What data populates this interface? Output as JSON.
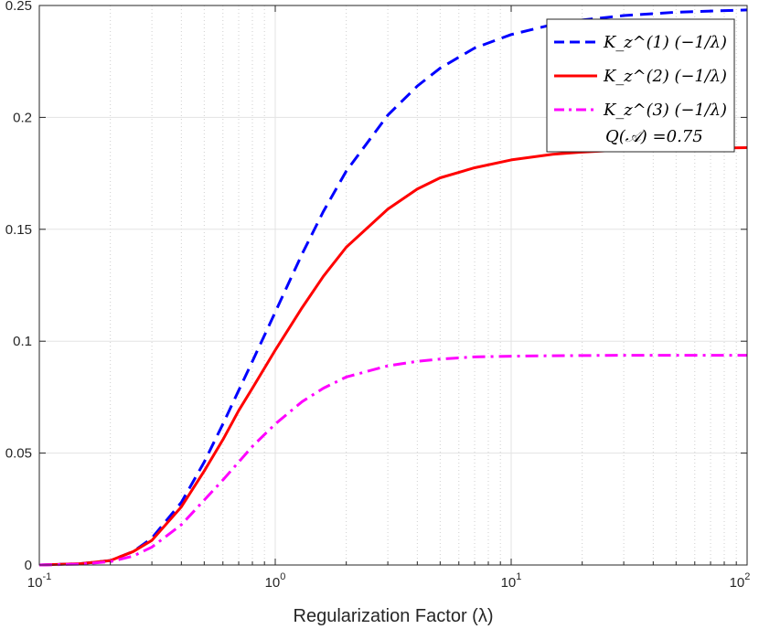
{
  "chart_data": {
    "type": "line",
    "xlabel": "Regularization Factor (λ)",
    "xscale": "log",
    "xlim": [
      0.1,
      100
    ],
    "ylim": [
      0,
      0.25
    ],
    "grid": true,
    "legend_position": "top-right",
    "x_ticks": [
      {
        "base": "10",
        "exp": "-1"
      },
      {
        "base": "10",
        "exp": "0"
      },
      {
        "base": "10",
        "exp": "1"
      },
      {
        "base": "10",
        "exp": "2"
      }
    ],
    "y_ticks": [
      "0",
      "0.05",
      "0.1",
      "0.15",
      "0.2",
      "0.25"
    ],
    "annotation": "Q(𝒜) =0.75",
    "series": [
      {
        "name": "K_z^(1) (−1/λ)",
        "color": "#0000ff",
        "style": "dashed",
        "x": [
          0.1,
          0.15,
          0.2,
          0.25,
          0.3,
          0.4,
          0.5,
          0.6,
          0.7,
          0.8,
          1.0,
          1.3,
          1.6,
          2.0,
          3.0,
          4.0,
          5.0,
          7.0,
          10,
          15,
          20,
          30,
          50,
          70,
          100
        ],
        "y": [
          0.0,
          0.0006,
          0.002,
          0.006,
          0.012,
          0.028,
          0.046,
          0.063,
          0.078,
          0.091,
          0.113,
          0.139,
          0.158,
          0.176,
          0.201,
          0.214,
          0.222,
          0.231,
          0.237,
          0.2415,
          0.2435,
          0.2455,
          0.247,
          0.2475,
          0.248
        ]
      },
      {
        "name": "K_z^(2) (−1/λ)",
        "color": "#ff0000",
        "style": "solid",
        "x": [
          0.1,
          0.15,
          0.2,
          0.25,
          0.3,
          0.4,
          0.5,
          0.6,
          0.7,
          0.8,
          1.0,
          1.3,
          1.6,
          2.0,
          3.0,
          4.0,
          5.0,
          7.0,
          10,
          15,
          20,
          30,
          50,
          70,
          100
        ],
        "y": [
          0.0,
          0.0006,
          0.002,
          0.006,
          0.011,
          0.026,
          0.042,
          0.056,
          0.069,
          0.079,
          0.096,
          0.115,
          0.129,
          0.142,
          0.159,
          0.168,
          0.173,
          0.1775,
          0.181,
          0.1835,
          0.1845,
          0.1855,
          0.186,
          0.1862,
          0.1865
        ]
      },
      {
        "name": "K_z^(3) (−1/λ)",
        "color": "#ff00ff",
        "style": "dashdot",
        "x": [
          0.1,
          0.15,
          0.2,
          0.25,
          0.3,
          0.4,
          0.5,
          0.6,
          0.7,
          0.8,
          1.0,
          1.3,
          1.6,
          2.0,
          3.0,
          4.0,
          5.0,
          7.0,
          10,
          15,
          20,
          30,
          50,
          70,
          100
        ],
        "y": [
          0.0,
          0.0004,
          0.0015,
          0.004,
          0.008,
          0.018,
          0.029,
          0.038,
          0.046,
          0.053,
          0.063,
          0.073,
          0.079,
          0.084,
          0.089,
          0.091,
          0.092,
          0.093,
          0.0933,
          0.0935,
          0.0936,
          0.0937,
          0.0937,
          0.0937,
          0.0937
        ]
      }
    ]
  }
}
